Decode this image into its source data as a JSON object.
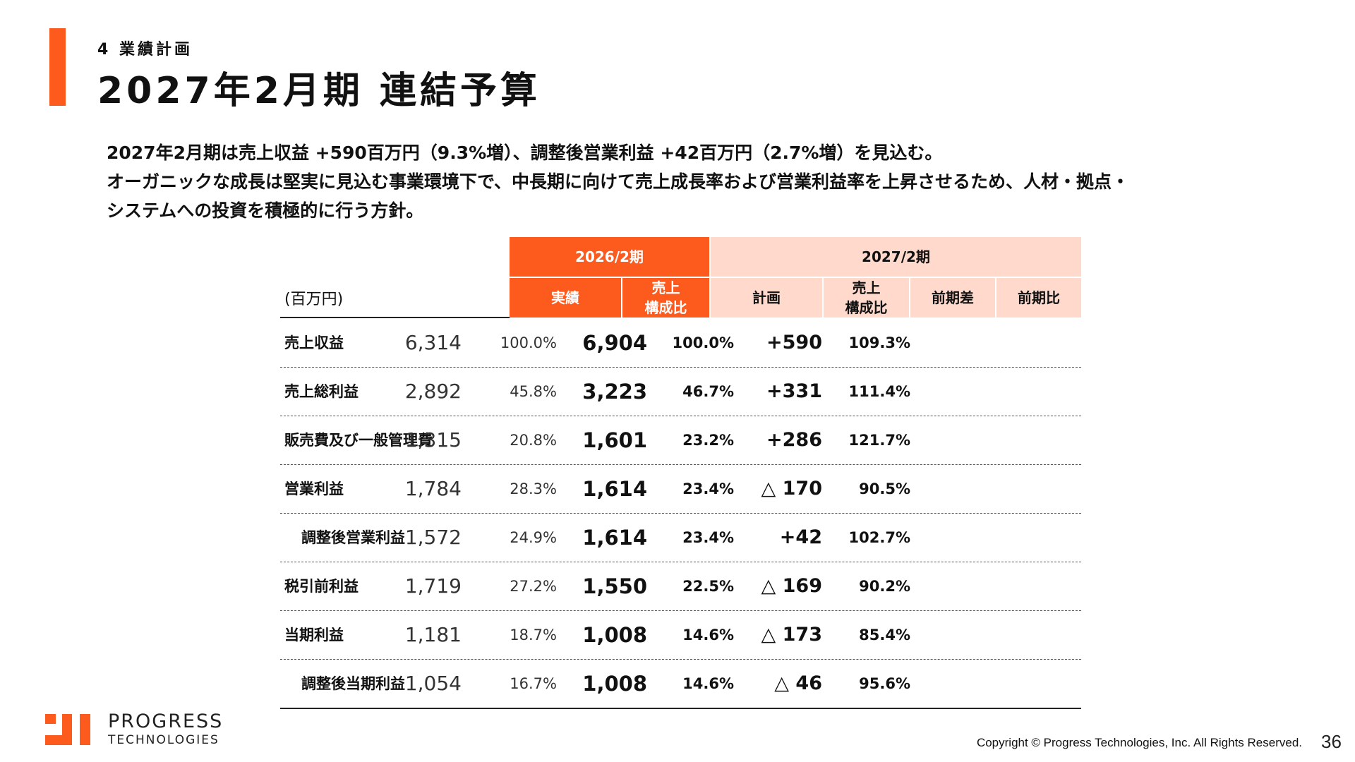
{
  "header": {
    "section_label": "4 業績計画",
    "title": "2027年2月期 連結予算"
  },
  "intro": {
    "lines": [
      "2027年2月期は売上収益 +590百万円（9.3%増）、調整後営業利益 +42百万円（2.7%増）を見込む。",
      "オーガニックな成長は堅実に見込む事業環境下で、中長期に向けて売上成長率および営業利益率を上昇させるため、人材・拠点・",
      "システムへの投資を積極的に行う方針。"
    ]
  },
  "table": {
    "unit_label": "(百万円)",
    "period_prev": "2026/2期",
    "period_plan": "2027/2期",
    "col_actual": "実績",
    "col_ratio_line1": "売上",
    "col_ratio_line2": "構成比",
    "col_plan": "計画",
    "col_diff": "前期差",
    "col_yoy": "前期比",
    "rows": [
      {
        "label": "売上収益",
        "actual": "6,314",
        "actual_ratio": "100.0%",
        "plan": "6,904",
        "plan_ratio": "100.0%",
        "diff": "+590",
        "yoy": "109.3%"
      },
      {
        "label": "売上総利益",
        "actual": "2,892",
        "actual_ratio": "45.8%",
        "plan": "3,223",
        "plan_ratio": "46.7%",
        "diff": "+331",
        "yoy": "111.4%"
      },
      {
        "label": "販売費及び一般管理費",
        "actual": "1,315",
        "actual_ratio": "20.8%",
        "plan": "1,601",
        "plan_ratio": "23.2%",
        "diff": "+286",
        "yoy": "121.7%"
      },
      {
        "label": "営業利益",
        "actual": "1,784",
        "actual_ratio": "28.3%",
        "plan": "1,614",
        "plan_ratio": "23.4%",
        "diff": "△ 170",
        "yoy": "90.5%"
      },
      {
        "label": "調整後営業利益",
        "actual": "1,572",
        "actual_ratio": "24.9%",
        "plan": "1,614",
        "plan_ratio": "23.4%",
        "diff": "+42",
        "yoy": "102.7%"
      },
      {
        "label": "税引前利益",
        "actual": "1,719",
        "actual_ratio": "27.2%",
        "plan": "1,550",
        "plan_ratio": "22.5%",
        "diff": "△ 169",
        "yoy": "90.2%"
      },
      {
        "label": "当期利益",
        "actual": "1,181",
        "actual_ratio": "18.7%",
        "plan": "1,008",
        "plan_ratio": "14.6%",
        "diff": "△ 173",
        "yoy": "85.4%"
      },
      {
        "label": "調整後当期利益",
        "actual": "1,054",
        "actual_ratio": "16.7%",
        "plan": "1,008",
        "plan_ratio": "14.6%",
        "diff": "△ 46",
        "yoy": "95.6%"
      }
    ]
  },
  "footer": {
    "logo_name": "PROGRESS",
    "logo_sub": "TECHNOLOGIES",
    "copyright": "Copyright © Progress Technologies, Inc. All Rights Reserved.",
    "page_number": "36"
  },
  "colors": {
    "accent": "#fd5a1e",
    "accent_light": "#ffd9cc"
  }
}
